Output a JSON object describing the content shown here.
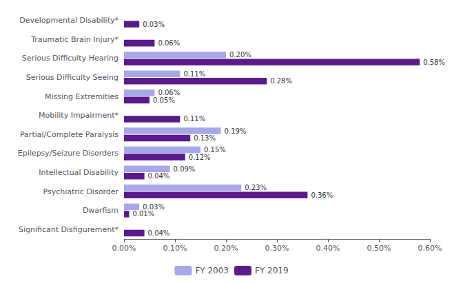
{
  "chart_data": {
    "type": "bar",
    "orientation": "horizontal",
    "categories": [
      "Significant Disfigurement*",
      "Dwarfism",
      "Psychiatric Disorder",
      "Intellectual Disability",
      "Epilepsy/Seizure Disorders",
      "Partial/Complete Paralysis",
      "Mobility Impairment*",
      "Missing Extremities",
      "Serious Difficulty Seeing",
      "Serious Difficulty Hearing",
      "Traumatic Brain Injury*",
      "Developmental Disability*"
    ],
    "series": [
      {
        "name": "FY 2003",
        "color": "#a8a8e8",
        "values": [
          0.0,
          0.0003,
          0.0023,
          0.0009,
          0.0015,
          0.0019,
          0.0,
          0.0006,
          0.0011,
          0.002,
          0.0,
          0.0
        ],
        "value_labels": [
          null,
          "0.03%",
          "0.23%",
          "0.09%",
          "0.15%",
          "0.19%",
          null,
          "0.06%",
          "0.11%",
          "0.20%",
          null,
          null
        ]
      },
      {
        "name": "FY 2019",
        "color": "#5b1a8b",
        "values": [
          0.0004,
          0.0001,
          0.0036,
          0.0004,
          0.0012,
          0.0013,
          0.0011,
          0.0005,
          0.0028,
          0.0058,
          0.0006,
          0.0003
        ],
        "value_labels": [
          "0.04%",
          "0.01%",
          "0.36%",
          "0.04%",
          "0.12%",
          "0.13%",
          "0.11%",
          "0.05%",
          "0.28%",
          "0.58%",
          "0.06%",
          "0.03%"
        ]
      }
    ],
    "xlim": [
      0,
      0.006
    ],
    "xticks": [
      {
        "value": 0.0,
        "label": "0.00%"
      },
      {
        "value": 0.001,
        "label": "0.10%"
      },
      {
        "value": 0.002,
        "label": "0.20%"
      },
      {
        "value": 0.003,
        "label": "0.30%"
      },
      {
        "value": 0.004,
        "label": "0.40%"
      },
      {
        "value": 0.005,
        "label": "0.50%"
      },
      {
        "value": 0.006,
        "label": "0.60%"
      }
    ],
    "data_labels": true,
    "legend": "bottom",
    "grid": false
  }
}
